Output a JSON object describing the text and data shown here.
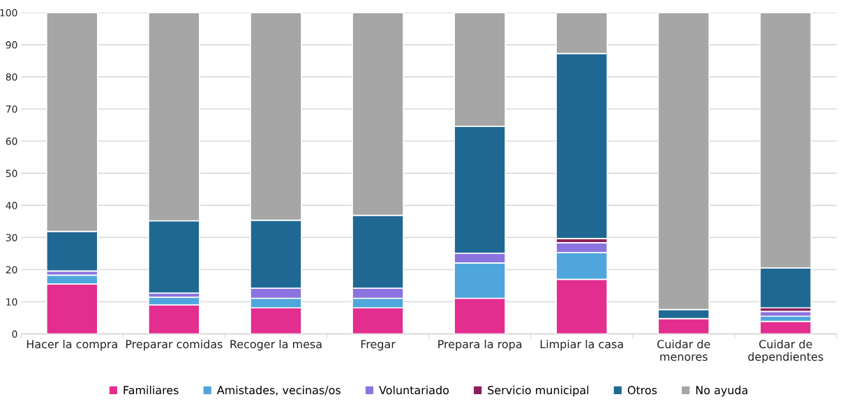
{
  "chart_data": {
    "type": "bar",
    "stacked": true,
    "categories": [
      "Hacer la compra",
      "Preparar comidas",
      "Recoger la mesa",
      "Fregar",
      "Prepara la ropa",
      "Limpiar la casa",
      "Cuidar de\nmenores",
      "Cuidar de\ndependientes"
    ],
    "series": [
      {
        "name": "Familiares",
        "color": "#e32e8f",
        "values": [
          15.5,
          9.0,
          8.1,
          8.1,
          11.1,
          17.0,
          4.8,
          3.9
        ]
      },
      {
        "name": "Amistades, vecinas/os",
        "color": "#4fa6dc",
        "values": [
          2.8,
          2.4,
          3.0,
          3.0,
          11.0,
          8.3,
          0,
          1.6
        ]
      },
      {
        "name": "Voluntariado",
        "color": "#8b74e0",
        "values": [
          1.3,
          1.3,
          3.1,
          3.1,
          3.0,
          3.1,
          0,
          1.5
        ]
      },
      {
        "name": "Servicio municipal",
        "color": "#8e1f5c",
        "values": [
          0,
          0,
          0,
          0,
          0,
          1.3,
          0,
          1.1
        ]
      },
      {
        "name": "Otros",
        "color": "#1f6894",
        "values": [
          12.3,
          22.5,
          21.2,
          22.7,
          39.5,
          57.6,
          2.8,
          12.4
        ]
      },
      {
        "name": "No ayuda",
        "color": "#a6a6a6",
        "values": [
          68.1,
          64.8,
          64.6,
          63.1,
          35.4,
          12.7,
          92.4,
          79.5
        ]
      }
    ],
    "ylim": [
      0,
      100
    ],
    "yticks": [
      0,
      10,
      20,
      30,
      40,
      50,
      60,
      70,
      80,
      90,
      100
    ],
    "grid": "y",
    "legend": "bottom"
  }
}
